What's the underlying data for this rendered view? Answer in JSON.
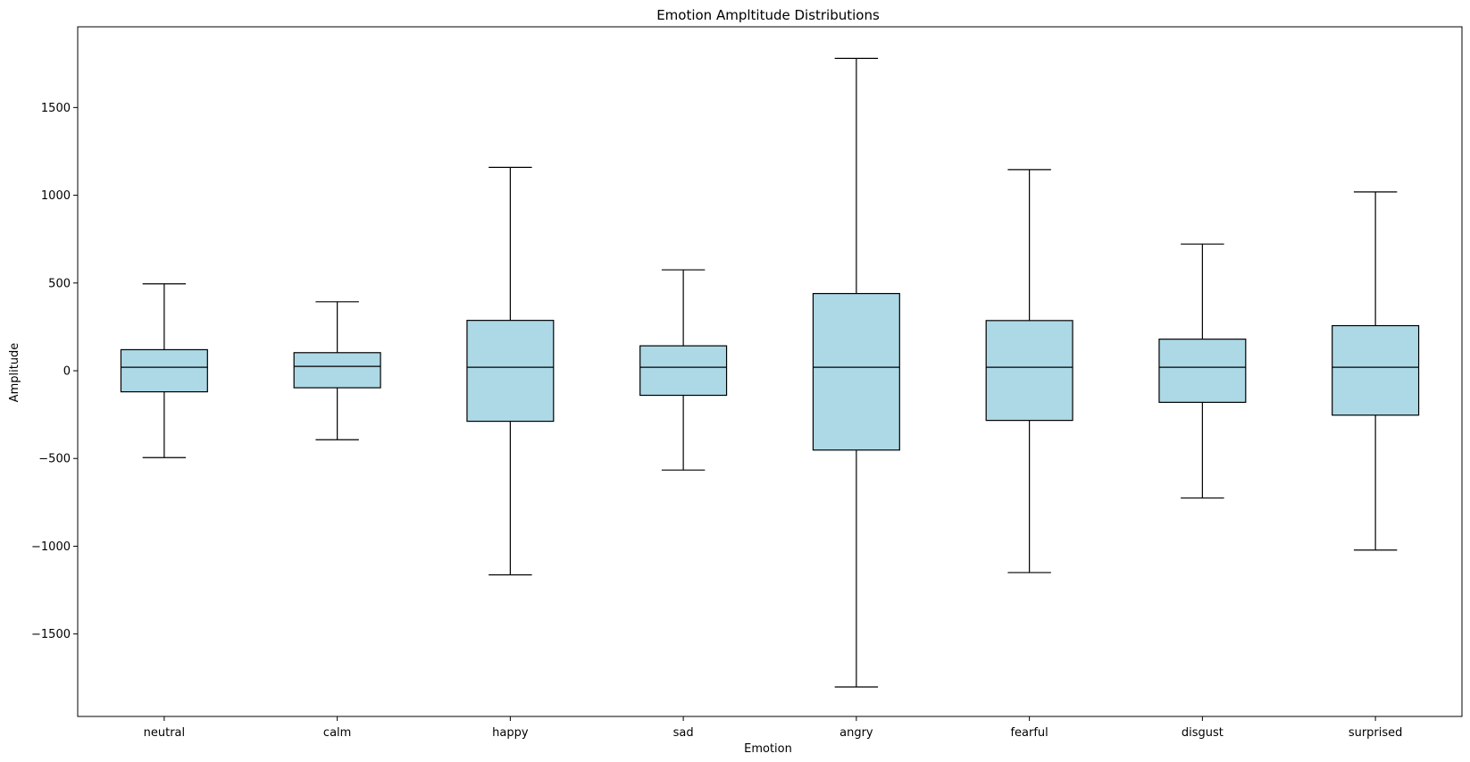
{
  "chart_data": {
    "type": "box",
    "title": "Emotion Ampltitude Distributions",
    "xlabel": "Emotion",
    "ylabel": "Amplitude",
    "ylim": [
      -1970,
      1960
    ],
    "yticks": [
      -1500,
      -1000,
      -500,
      0,
      500,
      1000,
      1500
    ],
    "ytick_labels": [
      "−1500",
      "−1000",
      "−500",
      "0",
      "500",
      "1000",
      "1500"
    ],
    "grid": false,
    "box_fill": "#add8e6",
    "line_color": "#000000",
    "categories": [
      "neutral",
      "calm",
      "happy",
      "sad",
      "angry",
      "fearful",
      "disgust",
      "surprised"
    ],
    "boxes": [
      {
        "name": "neutral",
        "whisker_low": -495,
        "q1": -120,
        "median": 20,
        "q3": 120,
        "whisker_high": 495
      },
      {
        "name": "calm",
        "whisker_low": -393,
        "q1": -97,
        "median": 25,
        "q3": 103,
        "whisker_high": 393
      },
      {
        "name": "happy",
        "whisker_low": -1163,
        "q1": -288,
        "median": 20,
        "q3": 287,
        "whisker_high": 1159
      },
      {
        "name": "sad",
        "whisker_low": -566,
        "q1": -140,
        "median": 20,
        "q3": 142,
        "whisker_high": 575
      },
      {
        "name": "angry",
        "whisker_low": -1802,
        "q1": -452,
        "median": 20,
        "q3": 440,
        "whisker_high": 1780
      },
      {
        "name": "fearful",
        "whisker_low": -1150,
        "q1": -283,
        "median": 20,
        "q3": 286,
        "whisker_high": 1146
      },
      {
        "name": "disgust",
        "whisker_low": -725,
        "q1": -180,
        "median": 20,
        "q3": 180,
        "whisker_high": 722
      },
      {
        "name": "surprised",
        "whisker_low": -1022,
        "q1": -253,
        "median": 20,
        "q3": 257,
        "whisker_high": 1019
      }
    ]
  }
}
